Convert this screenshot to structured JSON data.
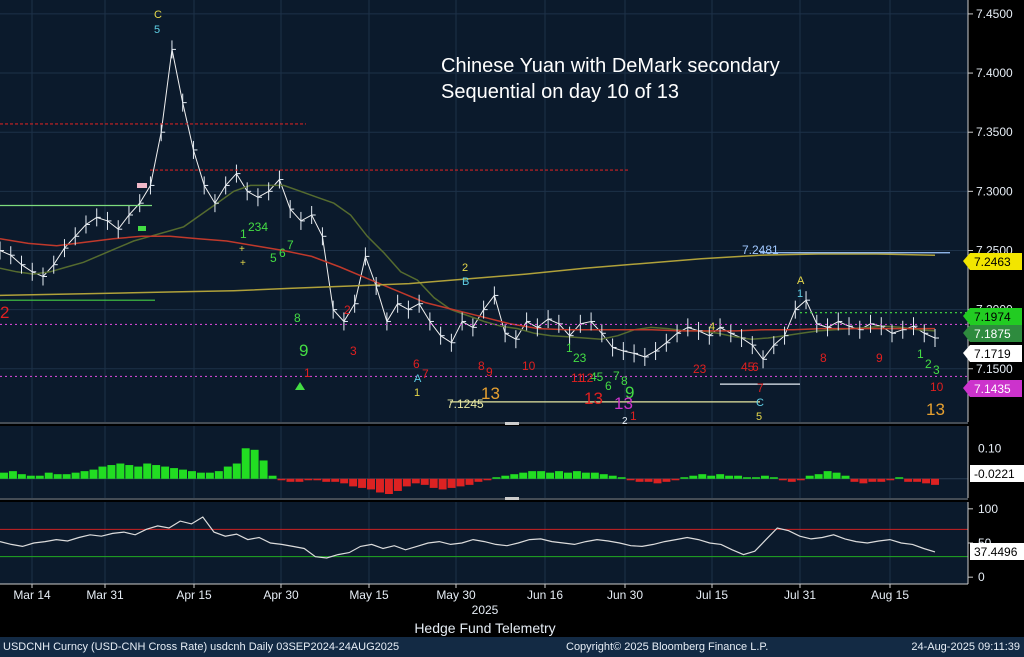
{
  "chart_data": {
    "type": "candlestick",
    "title_lines": [
      "Chinese Yuan with DeMark secondary",
      "Sequential on day 10 of 13"
    ],
    "panels": [
      {
        "name": "price",
        "type": "line",
        "ylim": [
          7.105,
          7.455
        ],
        "yticks": [
          "7.4500",
          "7.4000",
          "7.3500",
          "7.3000",
          "7.2500",
          "7.2000",
          "7.1500"
        ],
        "series": [
          {
            "color": "#f0f0f0",
            "values": [
              7.25,
              7.246,
              7.238,
              7.232,
              7.228,
              7.238,
              7.252,
              7.262,
              7.272,
              7.278,
              7.275,
              7.268,
              7.28,
              7.29,
              7.305,
              7.35,
              7.42,
              7.375,
              7.335,
              7.305,
              7.29,
              7.305,
              7.315,
              7.3,
              7.295,
              7.3,
              7.31,
              7.285,
              7.275,
              7.28,
              7.262,
              7.2,
              7.19,
              7.205,
              7.245,
              7.22,
              7.19,
              7.205,
              7.2,
              7.205,
              7.19,
              7.178,
              7.172,
              7.19,
              7.185,
              7.2,
              7.212,
              7.18,
              7.175,
              7.19,
              7.185,
              7.192,
              7.188,
              7.178,
              7.188,
              7.19,
              7.18,
              7.168,
              7.165,
              7.163,
              7.16,
              7.165,
              7.172,
              7.18,
              7.185,
              7.182,
              7.178,
              7.185,
              7.18,
              7.176,
              7.17,
              7.158,
              7.17,
              7.178,
              7.2,
              7.208,
              7.188,
              7.185,
              7.19,
              7.186,
              7.183,
              7.188,
              7.186,
              7.18,
              7.183,
              7.186,
              7.18,
              7.176
            ]
          },
          {
            "color": "#556b2f",
            "values": [
              7.235,
              7.232,
              7.23,
              7.232,
              7.236,
              7.24,
              7.246,
              7.252,
              7.258,
              7.262,
              7.266,
              7.27,
              7.28,
              7.29,
              7.3,
              7.305,
              7.305,
              7.305,
              7.3,
              7.295,
              7.29,
              7.28,
              7.262,
              7.248,
              7.232,
              7.225,
              7.21,
              7.2,
              7.195,
              7.19,
              7.186,
              7.184,
              7.18,
              7.178,
              7.177,
              7.176,
              7.175,
              7.178,
              7.183,
              7.185,
              7.184,
              7.182,
              7.182,
              7.18,
              7.177,
              7.175,
              7.176,
              7.178,
              7.18,
              7.182,
              7.183,
              7.184,
              7.185,
              7.186,
              7.185,
              7.183,
              7.182
            ]
          },
          {
            "color": "#c0392b",
            "values": [
              7.26,
              7.256,
              7.254,
              7.257,
              7.26,
              7.262,
              7.262,
              7.26,
              7.258,
              7.254,
              7.25,
              7.245,
              7.236,
              7.226,
              7.216,
              7.206,
              7.2,
              7.194,
              7.188,
              7.184,
              7.183,
              7.183,
              7.183,
              7.183,
              7.182,
              7.182,
              7.182,
              7.183,
              7.183,
              7.184,
              7.184,
              7.184,
              7.184,
              7.184
            ]
          },
          {
            "color": "#b0a13a",
            "values": [
              7.212,
              7.213,
              7.214,
              7.215,
              7.216,
              7.218,
              7.22,
              7.222,
              7.226,
              7.23,
              7.235,
              7.239,
              7.243,
              7.246,
              7.247,
              7.247,
              7.246
            ]
          }
        ]
      },
      {
        "name": "histogram",
        "type": "bar",
        "ylim": [
          -0.05,
          0.16
        ],
        "yticks": [
          "0.10"
        ],
        "current": "-0.0221",
        "values": [
          0.02,
          0.025,
          0.015,
          0.01,
          0.01,
          0.02,
          0.015,
          0.015,
          0.02,
          0.025,
          0.03,
          0.04,
          0.045,
          0.05,
          0.045,
          0.04,
          0.05,
          0.045,
          0.04,
          0.035,
          0.03,
          0.025,
          0.02,
          0.02,
          0.025,
          0.04,
          0.05,
          0.1,
          0.095,
          0.06,
          0.01,
          -0.005,
          -0.01,
          -0.01,
          -0.005,
          -0.005,
          -0.01,
          -0.01,
          -0.015,
          -0.025,
          -0.03,
          -0.035,
          -0.045,
          -0.05,
          -0.04,
          -0.025,
          -0.015,
          -0.02,
          -0.03,
          -0.035,
          -0.03,
          -0.025,
          -0.02,
          -0.01,
          -0.005,
          0.005,
          0.01,
          0.015,
          0.02,
          0.025,
          0.025,
          0.02,
          0.025,
          0.02,
          0.025,
          0.02,
          0.02,
          0.015,
          0.01,
          0.005,
          -0.005,
          -0.01,
          -0.01,
          -0.015,
          -0.01,
          -0.005,
          0.005,
          0.01,
          0.015,
          0.01,
          0.015,
          0.01,
          0.01,
          0.005,
          0.005,
          0.01,
          0.005,
          -0.005,
          -0.01,
          -0.005,
          0.01,
          0.015,
          0.025,
          0.02,
          0.01,
          -0.01,
          -0.015,
          -0.01,
          -0.01,
          -0.005,
          0.005,
          -0.01,
          -0.01,
          -0.015,
          -0.02
        ]
      },
      {
        "name": "oscillator",
        "type": "line",
        "ylim": [
          -10,
          110
        ],
        "yticks": [
          "100",
          "50",
          "0"
        ],
        "current": "37.4496",
        "reference_lines": [
          70,
          30
        ],
        "values": [
          52,
          48,
          45,
          50,
          52,
          55,
          53,
          58,
          62,
          60,
          64,
          66,
          62,
          70,
          75,
          72,
          82,
          78,
          88,
          66,
          60,
          63,
          55,
          58,
          50,
          48,
          45,
          42,
          30,
          28,
          33,
          36,
          45,
          48,
          42,
          46,
          40,
          45,
          50,
          52,
          48,
          50,
          55,
          52,
          48,
          46,
          50,
          55,
          56,
          52,
          50,
          48,
          52,
          55,
          53,
          50,
          46,
          45,
          48,
          52,
          55,
          58,
          55,
          50,
          48,
          40,
          33,
          38,
          55,
          72,
          68,
          60,
          56,
          58,
          62,
          56,
          52,
          50,
          53,
          55,
          50,
          48,
          42,
          37
        ]
      }
    ],
    "xlabels": [
      "Mar 14",
      "Mar 31",
      "Apr 15",
      "Apr 30",
      "May 15",
      "May 30",
      "Jun 16",
      "Jun 30",
      "Jul 15",
      "Jul 31",
      "Aug 15"
    ],
    "year_label": "2025",
    "xlabel": "Hedge Fund Telemetry",
    "price_tags": [
      {
        "label": "7.2463",
        "bg": "#f2e500",
        "fg": "#000000"
      },
      {
        "label": "7.1974",
        "bg": "#22cc22",
        "fg": "#000000"
      },
      {
        "label": "7.1875",
        "bg": "#2e8b3e",
        "fg": "#ffffff"
      },
      {
        "label": "7.1719",
        "bg": "#ffffff",
        "fg": "#000000"
      },
      {
        "label": "7.1435",
        "bg": "#cc33cc",
        "fg": "#ffffff"
      }
    ],
    "annotations": [
      {
        "text": "7.2481"
      },
      {
        "text": "7.1245"
      },
      {
        "text": "C"
      },
      {
        "text": "5"
      },
      {
        "text": "1"
      },
      {
        "text": "234"
      },
      {
        "text": "5"
      },
      {
        "text": "6"
      },
      {
        "text": "7"
      },
      {
        "text": "+"
      },
      {
        "text": "+"
      },
      {
        "text": "8"
      },
      {
        "text": "9"
      },
      {
        "text": "1"
      },
      {
        "text": "2"
      },
      {
        "text": "3"
      },
      {
        "text": "2"
      },
      {
        "text": "B"
      },
      {
        "text": "6"
      },
      {
        "text": "7"
      },
      {
        "text": "A"
      },
      {
        "text": "1"
      },
      {
        "text": "8"
      },
      {
        "text": "9"
      },
      {
        "text": "13"
      },
      {
        "text": "10"
      },
      {
        "text": "1"
      },
      {
        "text": "23"
      },
      {
        "text": "45"
      },
      {
        "text": "6"
      },
      {
        "text": "7"
      },
      {
        "text": "8"
      },
      {
        "text": "9"
      },
      {
        "text": "11"
      },
      {
        "text": "12"
      },
      {
        "text": "13"
      },
      {
        "text": "13"
      },
      {
        "text": "2"
      },
      {
        "text": "1"
      },
      {
        "text": "4"
      },
      {
        "text": "23"
      },
      {
        "text": "45"
      },
      {
        "text": "6"
      },
      {
        "text": "7"
      },
      {
        "text": "A"
      },
      {
        "text": "1"
      },
      {
        "text": "C"
      },
      {
        "text": "5"
      },
      {
        "text": "8"
      },
      {
        "text": "9"
      },
      {
        "text": "1"
      },
      {
        "text": "2"
      },
      {
        "text": "3"
      },
      {
        "text": "10"
      },
      {
        "text": "13"
      },
      {
        "text": "2"
      }
    ]
  },
  "footer": {
    "ticker": "USDCNH Curncy (USD-CNH Cross Rate) usdcnh  Daily 03SEP2024-24AUG2025",
    "copyright": "Copyright© 2025 Bloomberg Finance L.P.",
    "timestamp": "24-Aug-2025 09:11:39"
  }
}
